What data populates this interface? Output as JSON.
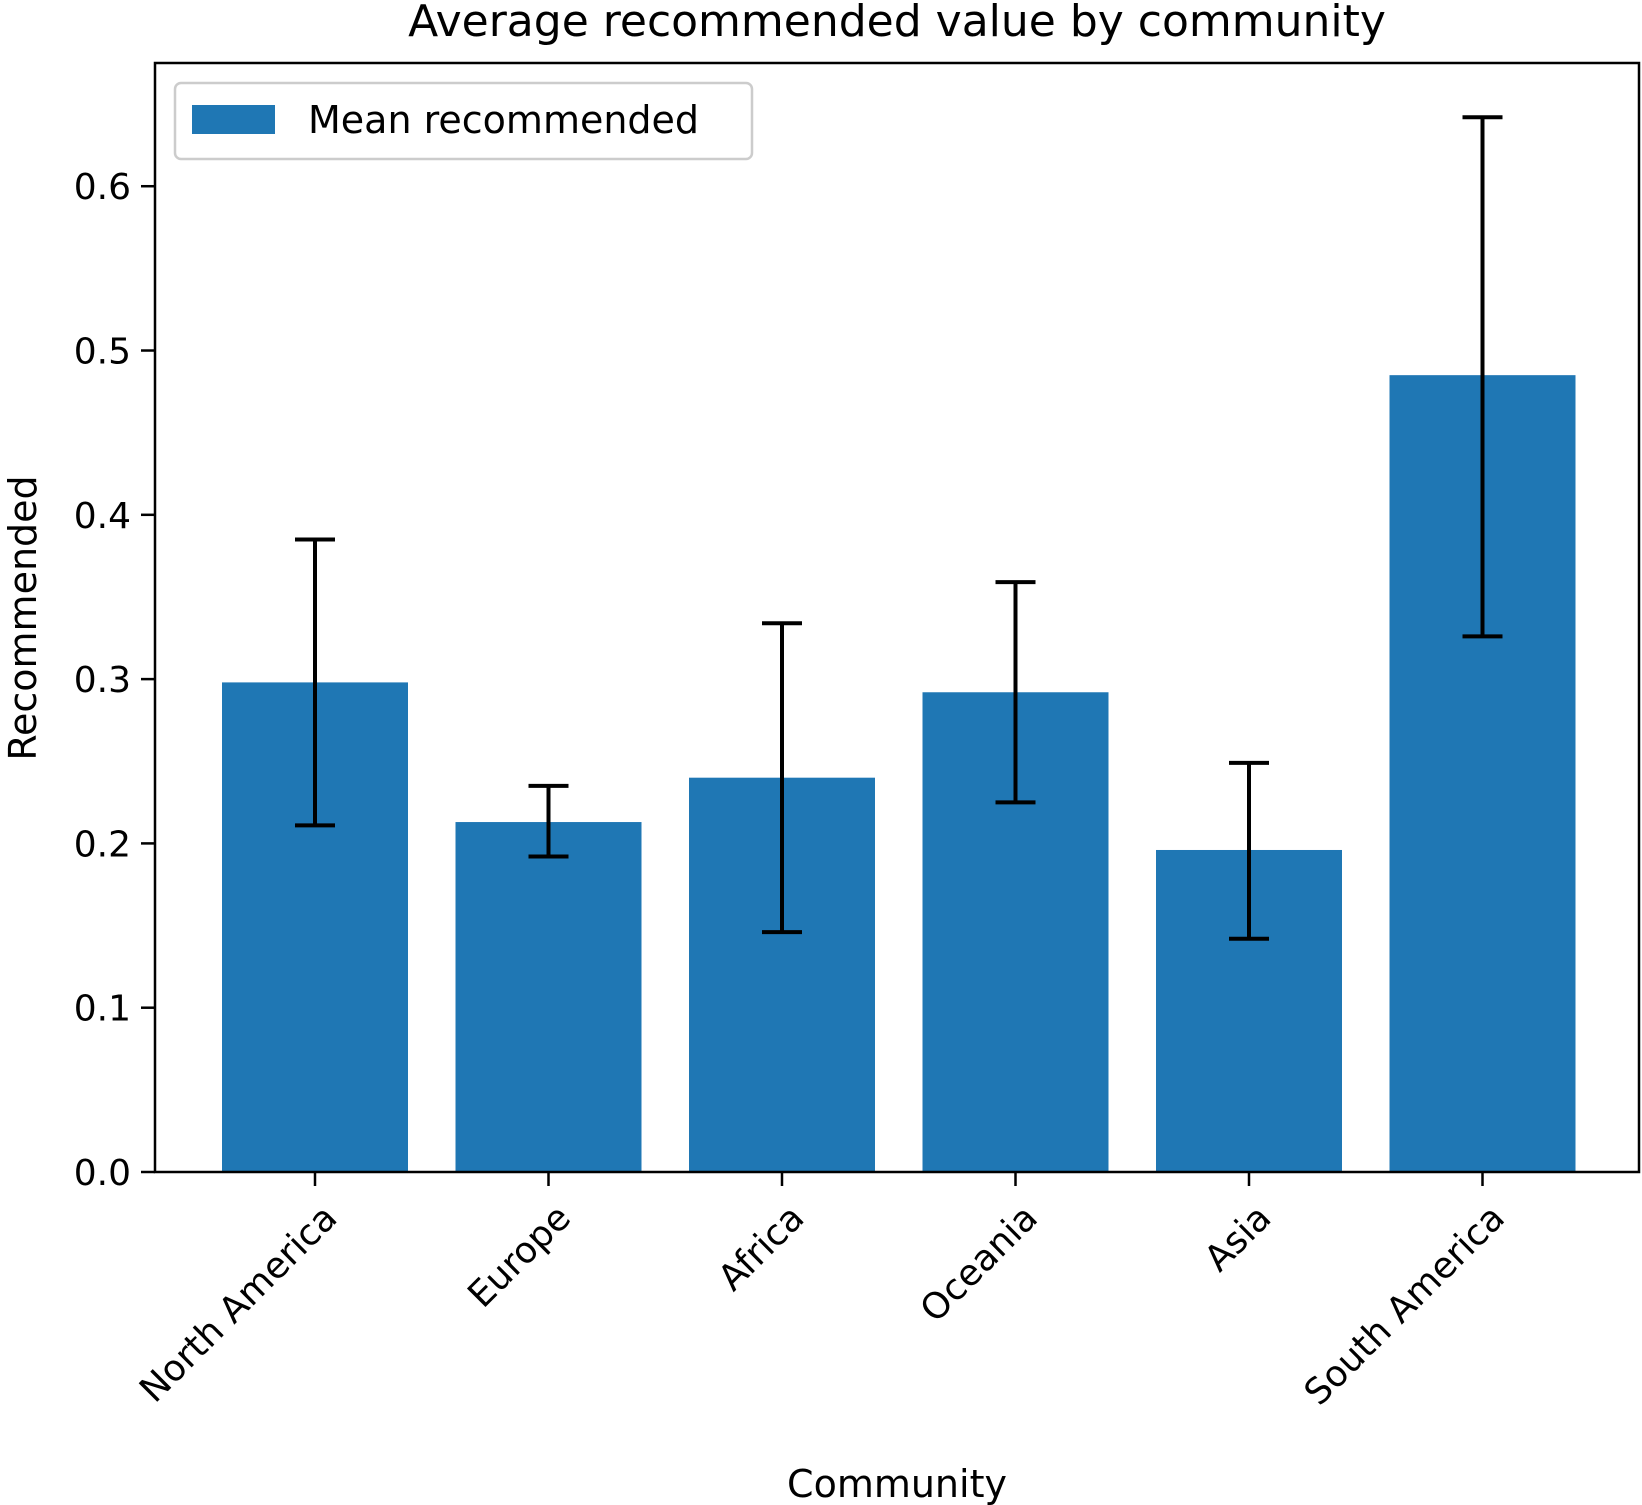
{
  "chart_data": {
    "type": "bar",
    "title": "Average recommended value by community",
    "xlabel": "Community",
    "ylabel": "Recommended",
    "categories": [
      "North America",
      "Europe",
      "Africa",
      "Oceania",
      "Asia",
      "South America"
    ],
    "series": [
      {
        "name": "Mean recommended",
        "color": "#1f77b4",
        "values": [
          0.298,
          0.213,
          0.24,
          0.292,
          0.196,
          0.485
        ],
        "error_low": [
          0.211,
          0.192,
          0.146,
          0.225,
          0.142,
          0.326
        ],
        "error_high": [
          0.385,
          0.235,
          0.334,
          0.359,
          0.249,
          0.642
        ]
      }
    ],
    "ylim": [
      0,
      0.675
    ],
    "yticks": [
      "0.0",
      "0.1",
      "0.2",
      "0.3",
      "0.4",
      "0.5",
      "0.6"
    ],
    "grid": false,
    "legend_position": "upper-left"
  }
}
